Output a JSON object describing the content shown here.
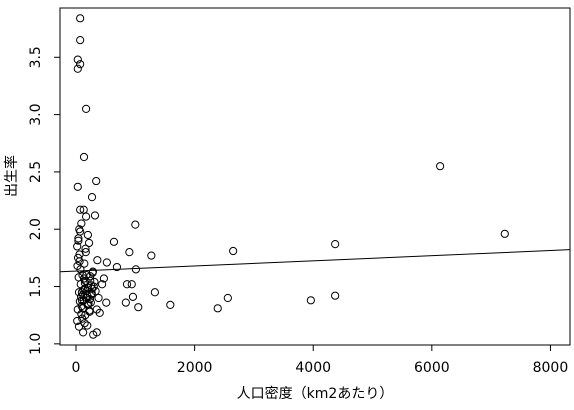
{
  "chart_data": {
    "type": "scatter",
    "xlabel": "人口密度（km2あたり）",
    "ylabel": "出生率",
    "xlim": [
      -270,
      8330
    ],
    "ylim": [
      0.99,
      3.93
    ],
    "xticks": [
      0,
      2000,
      4000,
      6000,
      8000
    ],
    "yticks": [
      {
        "value": 1,
        "label": "1.0"
      },
      1.5,
      {
        "value": 2,
        "label": "2.0"
      },
      2.5,
      {
        "value": 3,
        "label": "3.0"
      },
      3.5
    ],
    "color": "#000000",
    "fit": {
      "intercept": 1.635,
      "slope": 2.24e-05
    },
    "x": [
      70,
      70,
      30,
      70,
      30,
      170,
      135,
      340,
      30,
      270,
      6140,
      7230,
      4370,
      2650,
      1000,
      1270,
      900,
      640,
      690,
      1010,
      1330,
      1590,
      2560,
      2390,
      3960,
      4370,
      860,
      940,
      960,
      1050,
      840,
      510,
      520,
      470,
      440,
      400,
      350,
      290,
      350,
      190,
      120,
      320,
      170,
      70,
      130,
      20,
      40,
      60,
      90,
      110,
      150,
      180,
      210,
      240,
      280,
      30,
      50,
      80,
      100,
      140,
      160,
      200,
      230,
      260,
      300,
      20,
      45,
      75,
      95,
      125,
      155,
      190,
      220,
      250,
      310,
      35,
      55,
      85,
      115,
      145,
      175,
      205,
      235,
      265,
      330,
      25,
      65,
      105,
      135,
      165,
      195,
      225,
      255,
      285,
      380,
      40,
      60,
      90,
      120,
      150,
      180,
      210,
      240,
      270,
      360,
      50,
      70,
      100,
      130,
      160
    ],
    "y": [
      3.84,
      3.65,
      3.48,
      3.44,
      3.4,
      3.05,
      2.63,
      2.42,
      2.37,
      2.28,
      2.55,
      1.96,
      1.87,
      1.81,
      2.04,
      1.77,
      1.8,
      1.89,
      1.67,
      1.65,
      1.45,
      1.34,
      1.4,
      1.31,
      1.38,
      1.42,
      1.52,
      1.52,
      1.41,
      1.32,
      1.36,
      1.36,
      1.71,
      1.57,
      1.52,
      1.27,
      1.3,
      1.08,
      1.1,
      1.16,
      1.1,
      2.12,
      2.11,
      2.17,
      2.17,
      1.85,
      1.92,
      1.78,
      2.05,
      1.6,
      1.48,
      1.4,
      1.35,
      1.55,
      1.62,
      1.3,
      1.45,
      1.52,
      1.38,
      1.7,
      1.83,
      1.95,
      1.28,
      1.43,
      1.5,
      1.2,
      1.58,
      1.65,
      1.33,
      1.47,
      1.25,
      1.42,
      1.88,
      1.36,
      1.54,
      1.75,
      2.0,
      1.41,
      1.31,
      1.18,
      1.6,
      1.49,
      1.39,
      1.44,
      1.46,
      1.68,
      1.37,
      1.22,
      1.57,
      1.8,
      1.34,
      1.29,
      1.51,
      1.63,
      1.4,
      1.9,
      1.72,
      1.26,
      1.43,
      1.53,
      1.46,
      1.35,
      1.59,
      1.48,
      1.73,
      1.15,
      1.98,
      1.45,
      1.38,
      1.55
    ]
  }
}
